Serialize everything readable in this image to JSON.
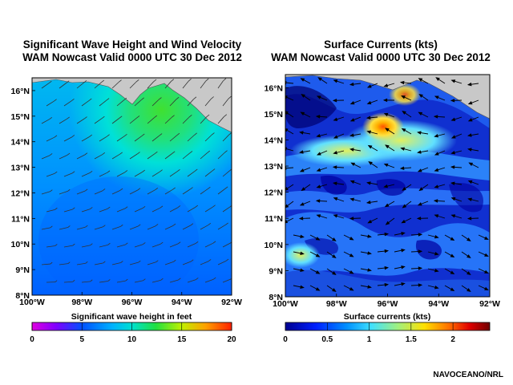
{
  "left_panel": {
    "title_line1": "Significant Wave Height and Wind Velocity",
    "title_line2": "WAM Nowcast Valid 0000 UTC 30 Dec 2012",
    "colorbar_label": "Significant wave height in feet",
    "colorbar_ticks": [
      "0",
      "5",
      "10",
      "15",
      "20"
    ]
  },
  "right_panel": {
    "title_line1": "Surface Currents (kts)",
    "title_line2": "WAM Nowcast Valid 0000 UTC 30 Dec 2012",
    "colorbar_label": "Surface currents (kts)",
    "colorbar_ticks": [
      "0",
      "0.5",
      "1",
      "1.5",
      "2"
    ]
  },
  "lat_labels": [
    "16°N",
    "15°N",
    "14°N",
    "13°N",
    "12°N",
    "11°N",
    "10°N",
    "9°N",
    "8°N"
  ],
  "lon_labels": [
    "100°W",
    "98°W",
    "96°W",
    "94°W",
    "92°W"
  ],
  "credit": "NAVOCEANO/NRL",
  "colors": {
    "land": "#c8c8c8",
    "wave_low": "#0050ff",
    "wave_mid": "#00e0e0",
    "wave_high": "#30e040",
    "current_low": "#0000a0",
    "current_mid": "#40c0ff",
    "current_high": "#ffd000"
  }
}
